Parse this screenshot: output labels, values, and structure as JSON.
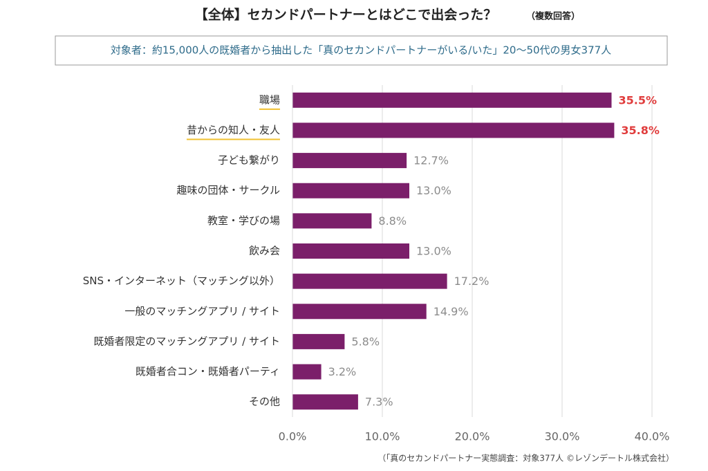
{
  "chart_data": {
    "type": "bar",
    "orientation": "horizontal",
    "title": "【全体】セカンドパートナーとはどこで出会った？",
    "title_note": "（複数回答）",
    "subtitle": "対象者：約15,000人の既婚者から抽出した「真のセカンドパートナーがいる/いた」20〜50代の男女377人",
    "footnote": "（「真のセカンドパートナー実態調査：対象377人 ©レゾンデートル株式会社）",
    "categories": [
      "職場",
      "昔からの知人・友人",
      "子ども繋がり",
      "趣味の団体・サークル",
      "教室・学びの場",
      "飲み会",
      "SNS・インターネット（マッチング以外）",
      "一般のマッチングアプリ / サイト",
      "既婚者限定のマッチングアプリ / サイト",
      "既婚者合コン・既婚者パーティ",
      "その他"
    ],
    "values": [
      35.5,
      35.8,
      12.7,
      13.0,
      8.8,
      13.0,
      17.2,
      14.9,
      5.8,
      3.2,
      7.3
    ],
    "value_labels": [
      "35.5%",
      "35.8%",
      "12.7%",
      "13.0%",
      "8.8%",
      "13.0%",
      "17.2%",
      "14.9%",
      "5.8%",
      "3.2%",
      "7.3%"
    ],
    "value_label_colors": [
      "#e03c3c",
      "#e03c3c",
      "#8c8c8c",
      "#8c8c8c",
      "#8c8c8c",
      "#8c8c8c",
      "#8c8c8c",
      "#8c8c8c",
      "#8c8c8c",
      "#8c8c8c",
      "#8c8c8c"
    ],
    "category_underline": [
      true,
      true,
      false,
      false,
      false,
      false,
      false,
      false,
      false,
      false,
      false
    ],
    "underline_color": "#f0c030",
    "color": "#7b1f6a",
    "xlim": [
      0,
      40
    ],
    "xticks": [
      {
        "value": 0,
        "label": "0.0%"
      },
      {
        "value": 10,
        "label": "10.0%"
      },
      {
        "value": 20,
        "label": "20.0%"
      },
      {
        "value": 30,
        "label": "30.0%"
      },
      {
        "value": 40,
        "label": "40.0%"
      }
    ],
    "grid": true
  }
}
